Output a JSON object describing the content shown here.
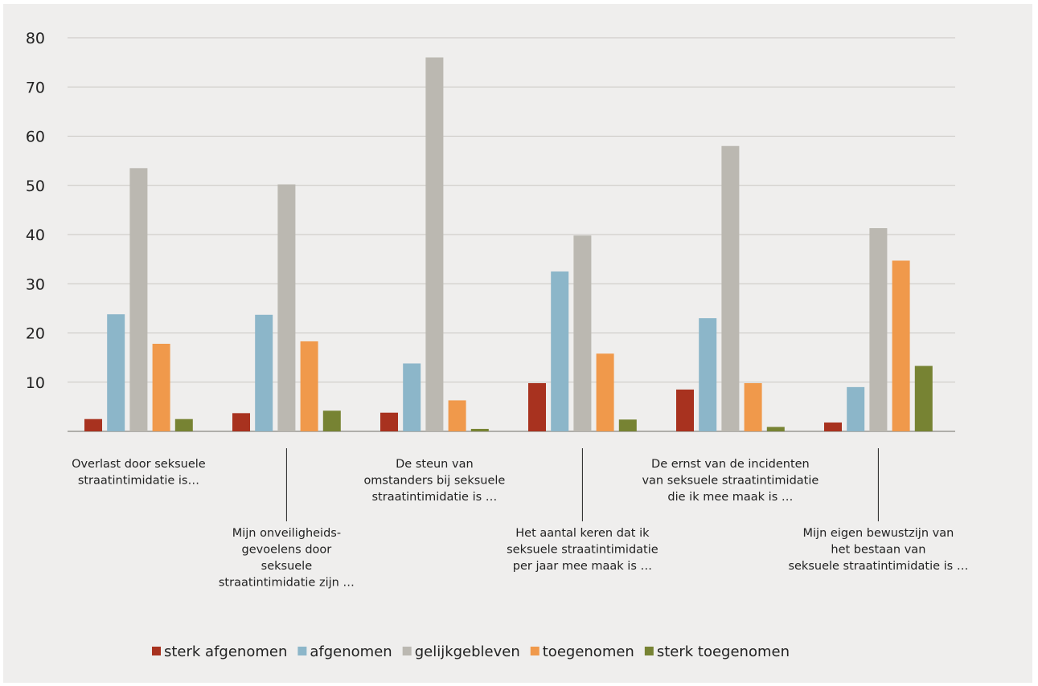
{
  "chart_data": {
    "type": "bar",
    "ylim": [
      0,
      80
    ],
    "yticks": [
      10,
      20,
      30,
      40,
      50,
      60,
      70,
      80
    ],
    "grid": true,
    "legend_position": "bottom",
    "categories": [
      [
        "Overlast door seksuele",
        "straatintimidatie is…"
      ],
      [
        "Mijn onveiligheids-",
        "gevoelens door",
        "seksuele",
        "straatintimidatie zijn …"
      ],
      [
        "De steun van",
        "omstanders bij seksuele",
        "straatintimidatie is …"
      ],
      [
        "Het aantal keren dat ik",
        "seksuele straatintimidatie",
        "per jaar mee maak is …"
      ],
      [
        "De ernst van de incidenten",
        "van seksuele straatintimidatie",
        "die ik mee maak is …"
      ],
      [
        "Mijn eigen bewustzijn van",
        "het bestaan van",
        "seksuele straatintimidatie is …"
      ]
    ],
    "series": [
      {
        "name": "sterk afgenomen",
        "color": "#a8321f",
        "values": [
          2.5,
          3.7,
          3.8,
          9.8,
          8.5,
          1.8
        ]
      },
      {
        "name": "afgenomen",
        "color": "#8cb6c9",
        "values": [
          23.8,
          23.7,
          13.8,
          32.5,
          23.0,
          9.0
        ]
      },
      {
        "name": "gelijkgebleven",
        "color": "#bbb8b1",
        "values": [
          53.5,
          50.2,
          76.0,
          39.8,
          58.0,
          41.3
        ]
      },
      {
        "name": "toegenomen",
        "color": "#f0994b",
        "values": [
          17.8,
          18.3,
          6.3,
          15.8,
          9.8,
          34.7
        ]
      },
      {
        "name": "sterk toegenomen",
        "color": "#778333",
        "values": [
          2.5,
          4.2,
          0.5,
          2.4,
          0.9,
          13.3
        ]
      }
    ]
  }
}
